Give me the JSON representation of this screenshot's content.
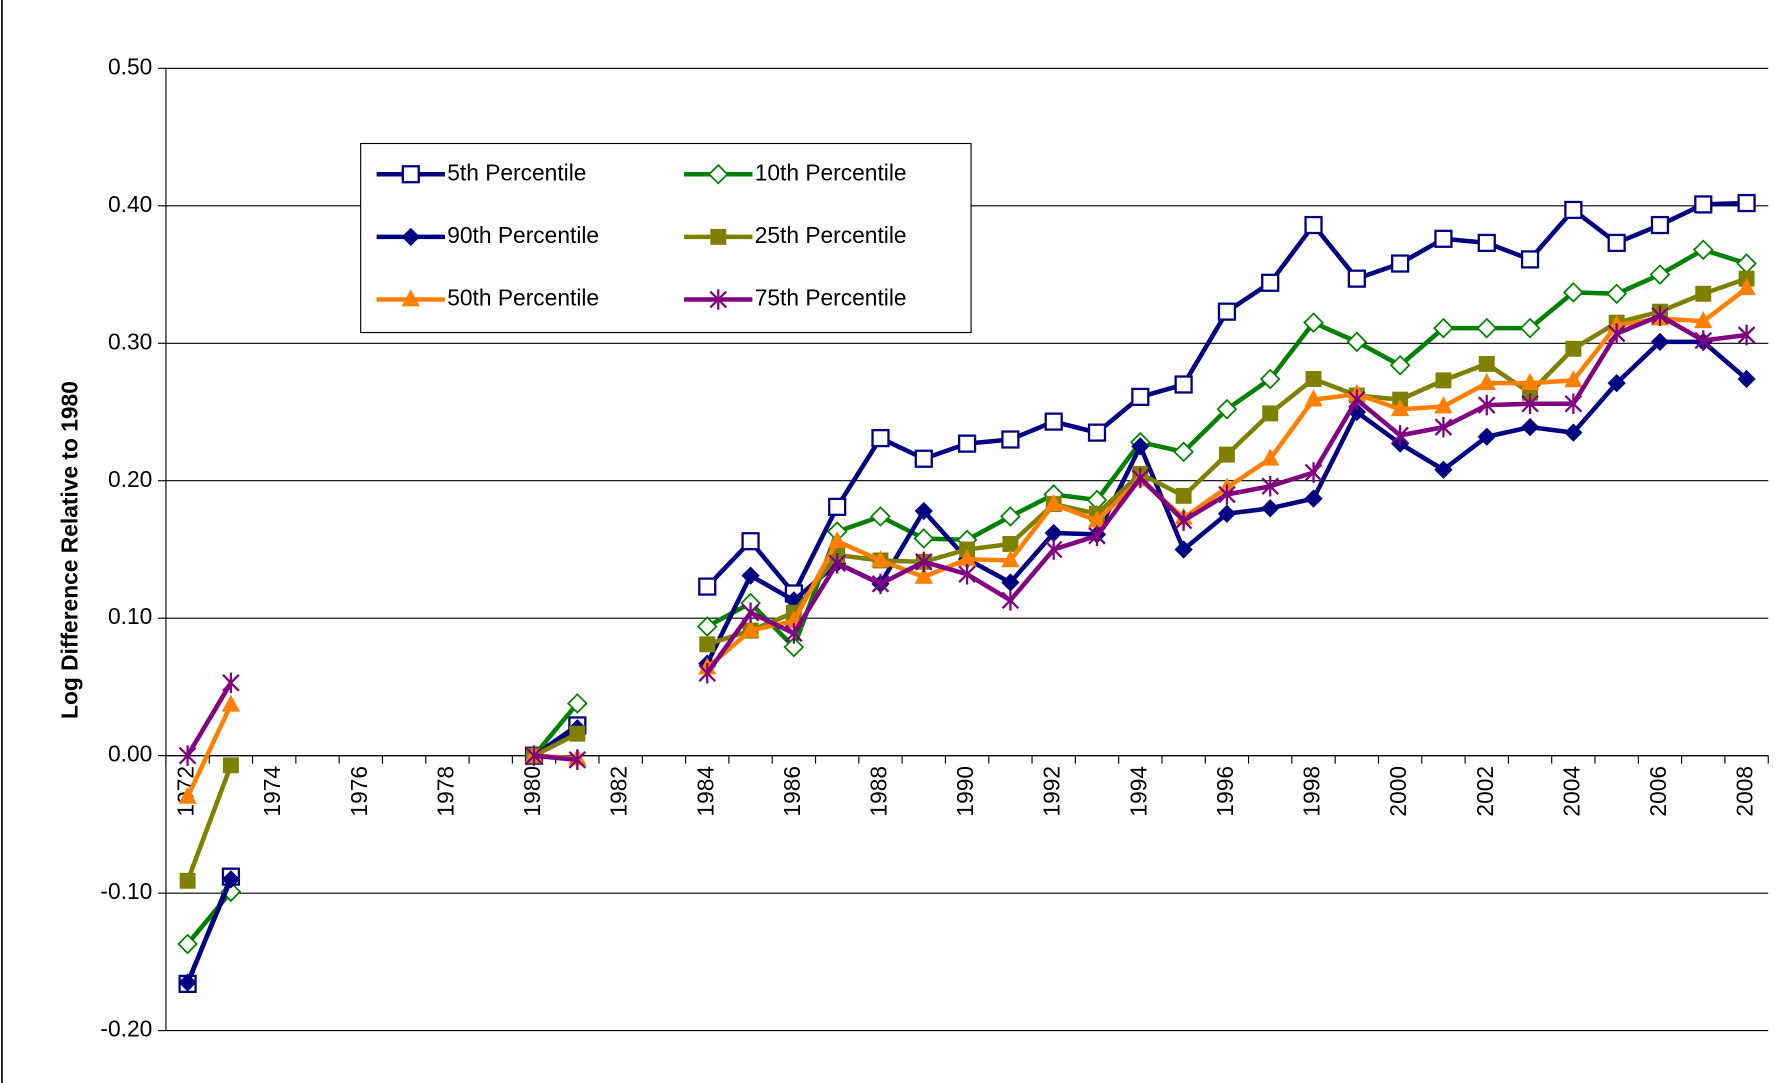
{
  "chart_data": {
    "type": "line",
    "y_label": "Log Difference Relative to 1980",
    "categories": [
      "1972",
      null,
      "1974",
      null,
      "1976",
      null,
      "1978",
      null,
      "1980",
      null,
      "1982",
      null,
      "1984",
      null,
      "1986",
      null,
      "1988",
      null,
      "1990",
      null,
      "1992",
      null,
      "1994",
      null,
      "1996",
      null,
      "1998",
      null,
      "2000",
      null,
      "2002",
      null,
      "2004",
      null,
      "2006",
      null,
      "2008"
    ],
    "ylim": [
      -0.2,
      0.5
    ],
    "yticks": [
      {
        "value": -0.2,
        "label": "-0.20"
      },
      {
        "value": -0.1,
        "label": "-0.10"
      },
      {
        "value": 0,
        "label": "0.00"
      },
      {
        "value": 0.1,
        "label": "0.10"
      },
      {
        "value": 0.2,
        "label": "0.20"
      },
      {
        "value": 0.3,
        "label": "0.30"
      },
      {
        "value": 0.4,
        "label": "0.40"
      },
      {
        "value": 0.5,
        "label": "0.50"
      }
    ],
    "grid": true,
    "legend": "upper left",
    "series": [
      {
        "name": "5th Percentile",
        "color": "#000080",
        "marker": "open-square",
        "values": [
          -0.166,
          -0.088,
          null,
          null,
          null,
          null,
          null,
          null,
          0.0,
          0.022,
          null,
          null,
          0.123,
          0.156,
          0.118,
          0.181,
          0.231,
          0.216,
          0.227,
          0.23,
          0.243,
          0.235,
          0.261,
          0.27,
          0.323,
          0.344,
          0.386,
          0.347,
          0.358,
          0.376,
          0.373,
          0.361,
          0.397,
          0.373,
          0.386,
          0.401,
          0.402
        ]
      },
      {
        "name": "10th Percentile",
        "color": "#008000",
        "marker": "open-diamond",
        "values": [
          -0.137,
          -0.099,
          null,
          null,
          null,
          null,
          null,
          null,
          0.0,
          0.038,
          null,
          null,
          0.094,
          0.111,
          0.079,
          0.163,
          0.174,
          0.158,
          0.157,
          0.174,
          0.19,
          0.186,
          0.228,
          0.221,
          0.252,
          0.274,
          0.315,
          0.301,
          0.284,
          0.311,
          0.311,
          0.311,
          0.337,
          0.336,
          0.35,
          0.368,
          0.358
        ]
      },
      {
        "name": "90th Percentile",
        "color": "#000080",
        "marker": "diamond",
        "values": [
          -0.165,
          -0.09,
          null,
          null,
          null,
          null,
          null,
          null,
          0.0,
          0.02,
          null,
          null,
          0.067,
          0.131,
          0.113,
          0.14,
          0.125,
          0.178,
          0.143,
          0.126,
          0.162,
          0.161,
          0.225,
          0.15,
          0.176,
          0.18,
          0.187,
          0.25,
          0.227,
          0.208,
          0.232,
          0.239,
          0.235,
          0.271,
          0.301,
          0.301,
          0.274
        ]
      },
      {
        "name": "25th Percentile",
        "color": "#808000",
        "marker": "square",
        "values": [
          -0.091,
          -0.007,
          null,
          null,
          null,
          null,
          null,
          null,
          0.0,
          0.016,
          null,
          null,
          0.081,
          0.091,
          0.104,
          0.146,
          0.142,
          0.141,
          0.15,
          0.154,
          0.183,
          0.176,
          0.205,
          0.189,
          0.219,
          0.249,
          0.274,
          0.262,
          0.259,
          0.273,
          0.285,
          0.264,
          0.296,
          0.315,
          0.323,
          0.336,
          0.347
        ]
      },
      {
        "name": "50th Percentile",
        "color": "#ff8000",
        "marker": "triangle",
        "values": [
          -0.03,
          0.037,
          null,
          null,
          null,
          null,
          null,
          null,
          0.0,
          -0.002,
          null,
          null,
          0.064,
          0.091,
          0.098,
          0.156,
          0.142,
          0.13,
          0.143,
          0.142,
          0.183,
          0.171,
          0.201,
          0.173,
          0.195,
          0.216,
          0.259,
          0.263,
          0.252,
          0.254,
          0.271,
          0.271,
          0.273,
          0.313,
          0.318,
          0.316,
          0.34
        ]
      },
      {
        "name": "75th Percentile",
        "color": "#800080",
        "marker": "star",
        "values": [
          0.0,
          0.053,
          null,
          null,
          null,
          null,
          null,
          null,
          0.0,
          -0.003,
          null,
          null,
          0.06,
          0.104,
          0.089,
          0.14,
          0.125,
          0.141,
          0.132,
          0.113,
          0.15,
          0.16,
          0.202,
          0.171,
          0.19,
          0.196,
          0.206,
          0.259,
          0.233,
          0.239,
          0.255,
          0.256,
          0.256,
          0.307,
          0.32,
          0.302,
          0.306
        ]
      }
    ]
  }
}
